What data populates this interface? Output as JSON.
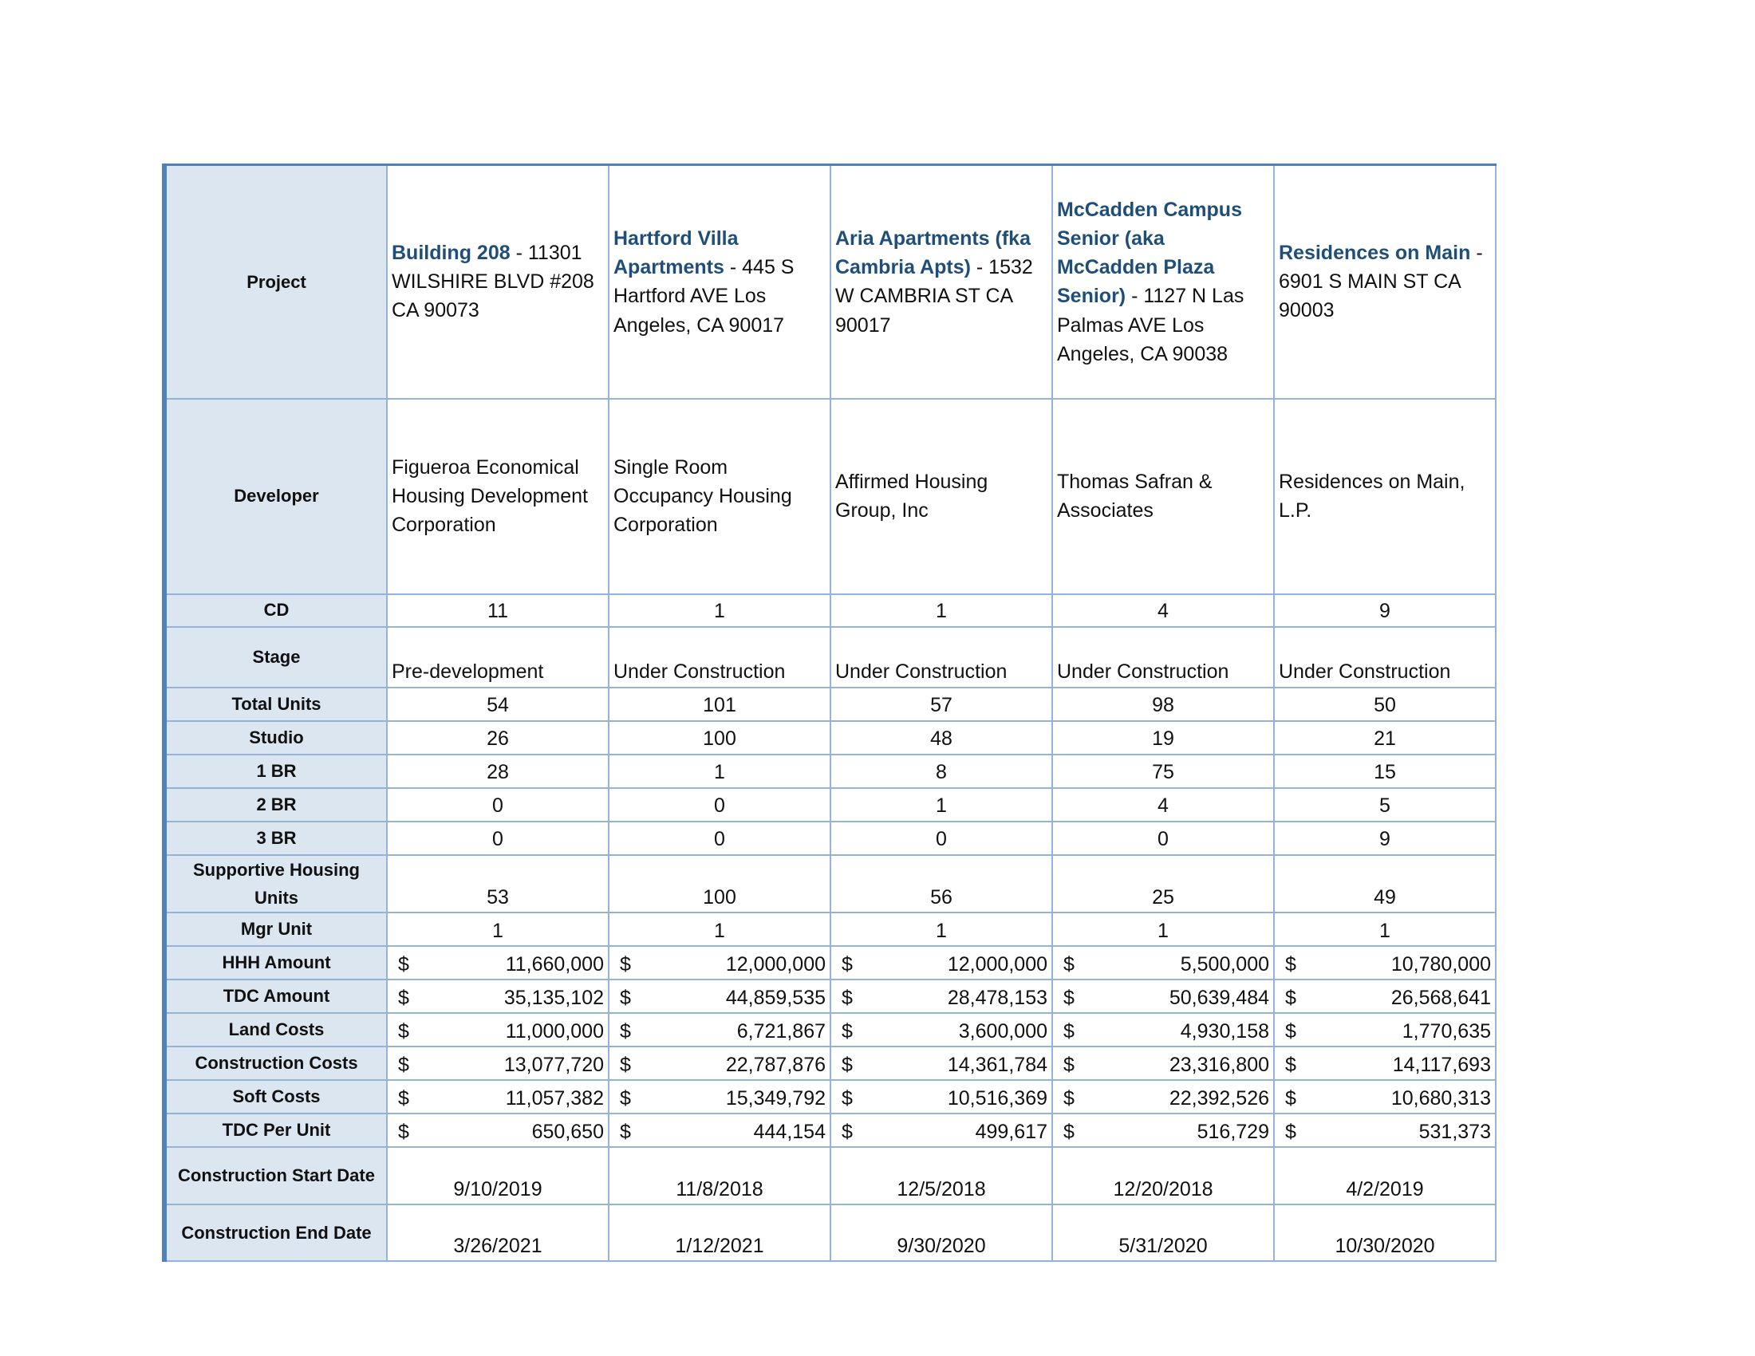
{
  "table": {
    "project_label": "Project",
    "projects": [
      {
        "name": "Building 208",
        "address": "- 11301 WILSHIRE BLVD  #208 CA 90073"
      },
      {
        "name": "Hartford Villa Apartments",
        "address": "- 445 S Hartford AVE  Los Angeles, CA 90017"
      },
      {
        "name": "Aria Apartments (fka Cambria Apts)",
        "address": "- 1532 W CAMBRIA ST CA 90017"
      },
      {
        "name": "McCadden Campus Senior (aka McCadden Plaza Senior)",
        "address": "- 1127 N Las Palmas AVE  Los Angeles, CA 90038"
      },
      {
        "name": "Residences on Main",
        "address": "- 6901 S MAIN ST CA 90003"
      }
    ],
    "rows": [
      {
        "label": "Developer",
        "cells": [
          "Figueroa Economical Housing Development Corporation",
          "Single Room Occupancy Housing Corporation",
          "Affirmed Housing Group, Inc",
          "Thomas Safran & Associates",
          "Residences on Main, L.P."
        ]
      },
      {
        "label": "CD",
        "cells": [
          "11",
          "1",
          "1",
          "4",
          "9"
        ]
      },
      {
        "label": "Stage",
        "cells": [
          "Pre-development",
          "Under Construction",
          "Under Construction",
          "Under Construction",
          "Under Construction"
        ]
      },
      {
        "label": "Total Units",
        "cells": [
          "54",
          "101",
          "57",
          "98",
          "50"
        ]
      },
      {
        "label": "Studio",
        "cells": [
          "26",
          "100",
          "48",
          "19",
          "21"
        ]
      },
      {
        "label": "1 BR",
        "cells": [
          "28",
          "1",
          "8",
          "75",
          "15"
        ]
      },
      {
        "label": "2 BR",
        "cells": [
          "0",
          "0",
          "1",
          "4",
          "5"
        ]
      },
      {
        "label": "3 BR",
        "cells": [
          "0",
          "0",
          "0",
          "0",
          "9"
        ]
      },
      {
        "label": "Supportive Housing Units",
        "cells": [
          "53",
          "100",
          "56",
          "25",
          "49"
        ]
      },
      {
        "label": "Mgr Unit",
        "cells": [
          "1",
          "1",
          "1",
          "1",
          "1"
        ]
      },
      {
        "label": "HHH Amount",
        "currency": "$",
        "cells": [
          "11,660,000",
          "12,000,000",
          "12,000,000",
          "5,500,000",
          "10,780,000"
        ]
      },
      {
        "label": "TDC Amount",
        "currency": "$",
        "cells": [
          "35,135,102",
          "44,859,535",
          "28,478,153",
          "50,639,484",
          "26,568,641"
        ]
      },
      {
        "label": "Land Costs",
        "currency": "$",
        "cells": [
          "11,000,000",
          "6,721,867",
          "3,600,000",
          "4,930,158",
          "1,770,635"
        ]
      },
      {
        "label": "Construction Costs",
        "currency": "$",
        "cells": [
          "13,077,720",
          "22,787,876",
          "14,361,784",
          "23,316,800",
          "14,117,693"
        ]
      },
      {
        "label": "Soft Costs",
        "currency": "$",
        "cells": [
          "11,057,382",
          "15,349,792",
          "10,516,369",
          "22,392,526",
          "10,680,313"
        ]
      },
      {
        "label": "TDC Per Unit",
        "currency": "$",
        "cells": [
          "650,650",
          "444,154",
          "499,617",
          "516,729",
          "531,373"
        ]
      },
      {
        "label": "Construction Start Date",
        "cells": [
          "9/10/2019",
          "11/8/2018",
          "12/5/2018",
          "12/20/2018",
          "4/2/2019"
        ]
      },
      {
        "label": "Construction End Date",
        "cells": [
          "3/26/2021",
          "1/12/2021",
          "9/30/2020",
          "5/31/2020",
          "10/30/2020"
        ]
      }
    ]
  }
}
